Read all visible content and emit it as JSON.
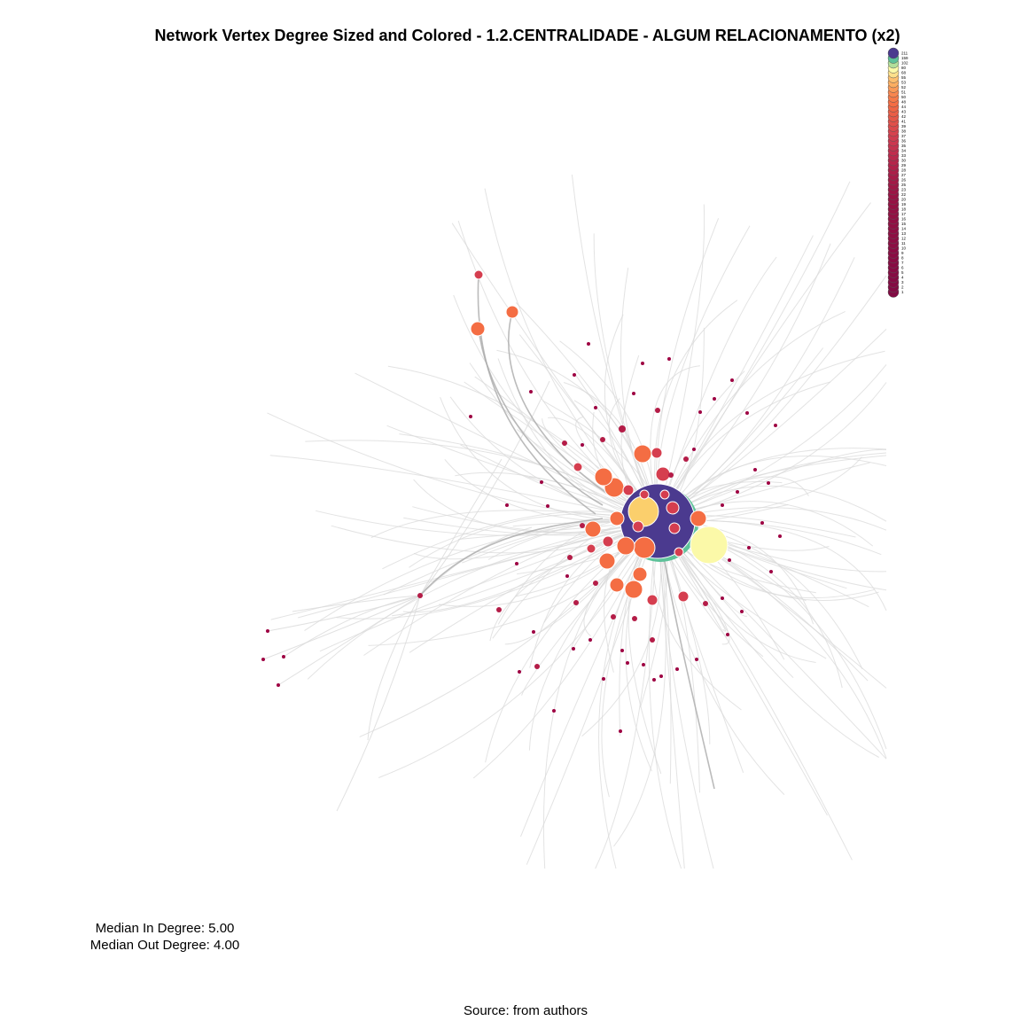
{
  "title": "Network Vertex Degree Sized and Colored - 1.2.CENTRALIDADE - ALGUM RELACIONAMENTO (x2)",
  "stats": {
    "median_in": "Median In Degree: 5.00",
    "median_out": "Median Out Degree: 4.00"
  },
  "caption": "Source: from authors",
  "colors": {
    "edge_light": "#d9d9d9",
    "edge_dark": "#aaaaaa",
    "hub": "#4b3a8f",
    "hub_ring": "#5ec29a",
    "high": "#fbf9a8",
    "mid_yellow": "#fbcf6c",
    "orange": "#f46d43",
    "red": "#d53e4f",
    "crimson": "#b41c47",
    "dark": "#9e0142"
  },
  "legend": {
    "labels": [
      "211",
      "159",
      "102",
      "80",
      "68",
      "55",
      "53",
      "52",
      "51",
      "50",
      "48",
      "44",
      "43",
      "42",
      "41",
      "39",
      "38",
      "37",
      "36",
      "35",
      "34",
      "33",
      "30",
      "29",
      "28",
      "27",
      "26",
      "25",
      "23",
      "22",
      "20",
      "19",
      "18",
      "17",
      "16",
      "15",
      "14",
      "13",
      "12",
      "11",
      "10",
      "9",
      "8",
      "7",
      "6",
      "5",
      "4",
      "3",
      "2",
      "1"
    ]
  },
  "chart_data": {
    "type": "network",
    "title": "Network Vertex Degree Sized and Colored - 1.2.CENTRALIDADE - ALGUM RELACIONAMENTO (x2)",
    "size_color_variable": "degree",
    "legend_values": [
      211,
      159,
      102,
      80,
      68,
      55,
      53,
      52,
      51,
      50,
      48,
      44,
      43,
      42,
      41,
      39,
      38,
      37,
      36,
      35,
      34,
      33,
      30,
      29,
      28,
      27,
      26,
      25,
      23,
      22,
      20,
      19,
      18,
      17,
      16,
      15,
      14,
      13,
      12,
      11,
      10,
      9,
      8,
      7,
      6,
      5,
      4,
      3,
      2,
      1
    ],
    "median_in_degree": 5.0,
    "median_out_degree": 4.0
  }
}
